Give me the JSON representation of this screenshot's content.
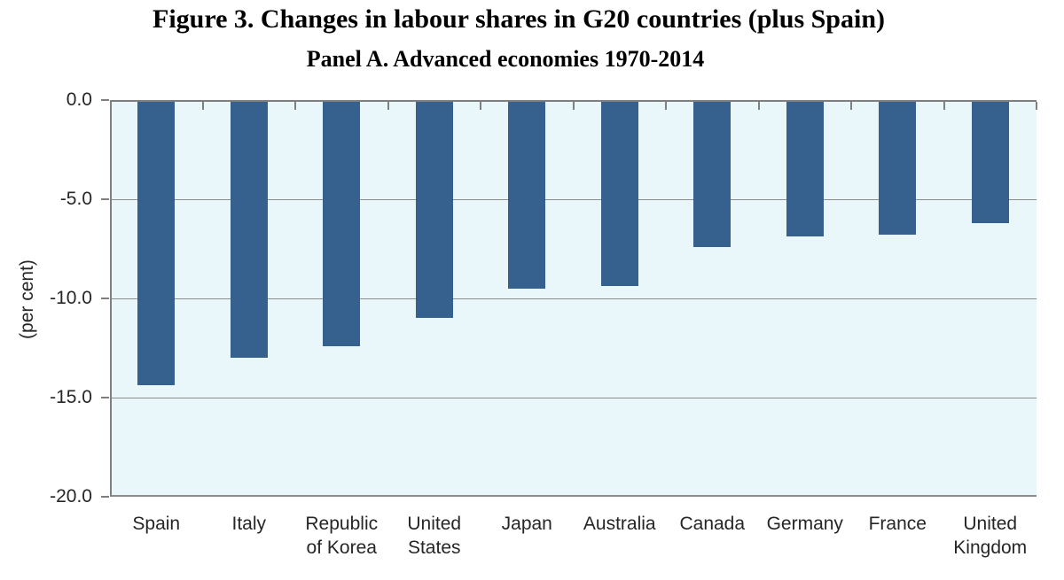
{
  "figure": {
    "title": "Figure 3. Changes in labour shares in G20 countries (plus Spain)",
    "subtitle": "Panel A. Advanced economies 1970-2014"
  },
  "chart_data": {
    "type": "bar",
    "title": "Figure 3. Changes in labour shares in G20 countries (plus Spain)",
    "subtitle": "Panel A. Advanced economies 1970-2014",
    "xlabel": "",
    "ylabel": "(per cent)",
    "categories": [
      "Spain",
      "Italy",
      "Republic of Korea",
      "United States",
      "Japan",
      "Australia",
      "Canada",
      "Germany",
      "France",
      "United Kingdom"
    ],
    "category_label_lines": [
      [
        "Spain"
      ],
      [
        "Italy"
      ],
      [
        "Republic",
        "of Korea"
      ],
      [
        "United",
        "States"
      ],
      [
        "Japan"
      ],
      [
        "Australia"
      ],
      [
        "Canada"
      ],
      [
        "Germany"
      ],
      [
        "France"
      ],
      [
        "United",
        "Kingdom"
      ]
    ],
    "values": [
      -14.3,
      -12.9,
      -12.3,
      -10.9,
      -9.4,
      -9.3,
      -7.3,
      -6.8,
      -6.7,
      -6.1
    ],
    "ylim": [
      -20.0,
      0.0
    ],
    "yticks": [
      0.0,
      -5.0,
      -10.0,
      -15.0,
      -20.0
    ],
    "ytick_labels": [
      "0.0",
      "-5.0",
      "-10.0",
      "-15.0",
      "-20.0"
    ],
    "grid": true,
    "legend": "none",
    "bar_orientation": "vertical-down",
    "colors": {
      "bar": "#36618F",
      "plot_background": "#E9F7FA",
      "gridline": "#8C8C8C",
      "axis": "#7F7F7F",
      "text": "#262626",
      "title_text": "#000000"
    }
  }
}
